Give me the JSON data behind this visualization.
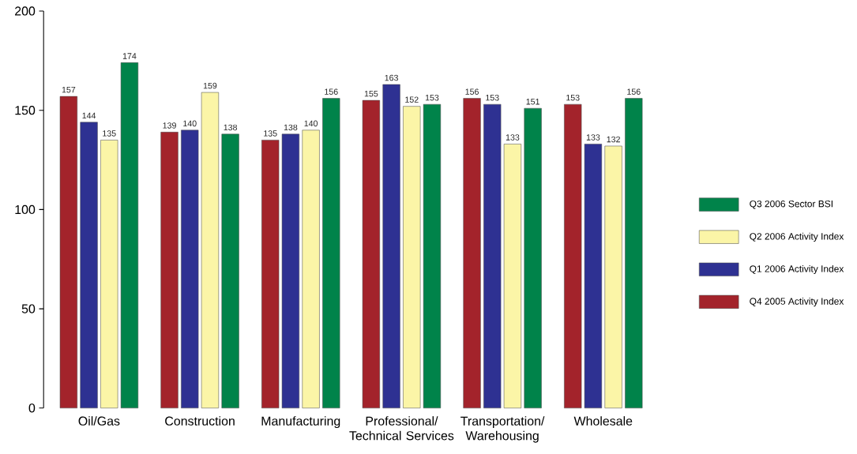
{
  "chart_data": {
    "type": "bar",
    "categories": [
      "Oil/Gas",
      "Construction",
      "Manufacturing",
      "Professional/ Technical Services",
      "Transportation/ Warehousing",
      "Wholesale"
    ],
    "series": [
      {
        "name": "Q4 2005 Activity Index",
        "color": "#a3232b",
        "values": [
          157,
          139,
          135,
          155,
          156,
          153
        ]
      },
      {
        "name": "Q1 2006 Activity Index",
        "color": "#2e3192",
        "values": [
          144,
          140,
          138,
          163,
          153,
          133
        ]
      },
      {
        "name": "Q2 2006 Activity Index",
        "color": "#fbf5a7",
        "values": [
          135,
          159,
          140,
          152,
          133,
          132
        ]
      },
      {
        "name": "Q3 2006 Sector BSI",
        "color": "#00834a",
        "values": [
          174,
          138,
          156,
          153,
          151,
          156
        ]
      }
    ],
    "ylim": [
      0,
      200
    ],
    "yticks": [
      0,
      50,
      100,
      150,
      200
    ],
    "legend": "right",
    "data_labels": true
  }
}
